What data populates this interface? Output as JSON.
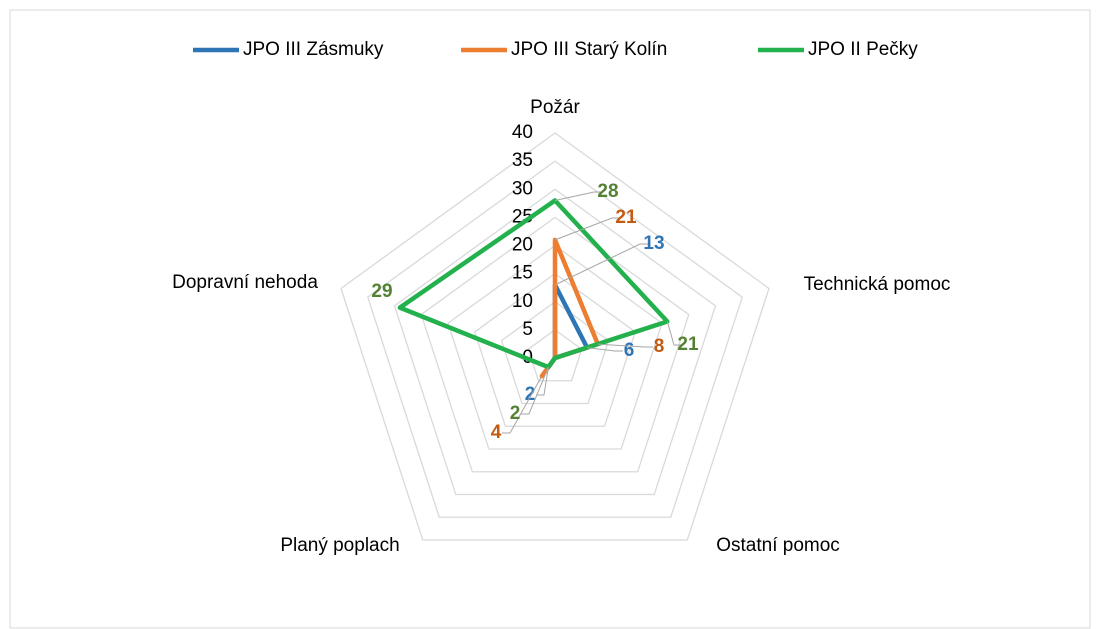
{
  "chart_data": {
    "type": "radar",
    "categories": [
      "Požár",
      "Technická pomoc",
      "Ostatní pomoc",
      "Planý poplach",
      "Dopravní nehoda"
    ],
    "series": [
      {
        "name": "JPO III Zásmuky",
        "color": "#2e75b6",
        "label_color": "#2e75b6",
        "values": [
          13,
          6,
          0,
          2,
          0
        ],
        "value_labels": [
          "13",
          "6",
          null,
          "2",
          null
        ]
      },
      {
        "name": "JPO III Starý Kolín",
        "color": "#ed7d31",
        "label_color": "#c55a11",
        "values": [
          21,
          8,
          0,
          4,
          0
        ],
        "value_labels": [
          "21",
          "8",
          null,
          "4",
          null
        ]
      },
      {
        "name": "JPO II Pečky",
        "color": "#22b14c",
        "label_color": "#548235",
        "values": [
          28,
          21,
          0,
          2,
          29
        ],
        "value_labels": [
          "28",
          "21",
          null,
          "2",
          "29"
        ]
      }
    ],
    "ylim": [
      0,
      40
    ],
    "yticks": [
      0,
      5,
      10,
      15,
      20,
      25,
      30,
      35,
      40
    ],
    "grid": true,
    "legend": "top"
  }
}
